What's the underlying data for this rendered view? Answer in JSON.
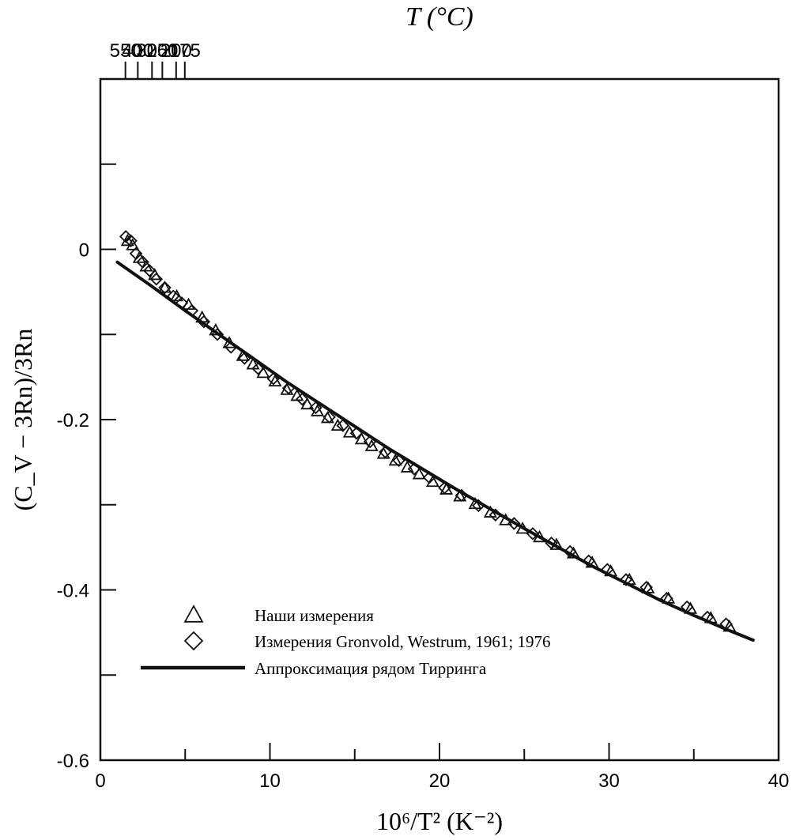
{
  "chart_data": {
    "type": "scatter",
    "xlabel": "10⁶/T² (K⁻²)",
    "ylabel": "(C_V − 3Rn)/3Rn",
    "top_axis_label": "T (°C)",
    "xlim": [
      0,
      40
    ],
    "ylim": [
      -0.6,
      0.2
    ],
    "x_tick_labels": [
      "0",
      "10",
      "20",
      "30",
      "40"
    ],
    "y_tick_labels": [
      "0",
      "-0.2",
      "-0.4",
      "-0.6"
    ],
    "top_ticks": [
      {
        "label": "550",
        "celsius": 550
      },
      {
        "label": "400",
        "celsius": 400
      },
      {
        "label": "300",
        "celsius": 300
      },
      {
        "label": "250",
        "celsius": 250
      },
      {
        "label": "200",
        "celsius": 200
      },
      {
        "label": "175",
        "celsius": 175
      }
    ],
    "grid": false,
    "legend_position": "bottom-left",
    "series": [
      {
        "name": "Наши измерения",
        "marker": "triangle",
        "x": [
          1.6,
          1.9,
          2.3,
          2.7,
          3.2,
          3.8,
          4.5,
          5.2,
          6.0,
          6.8,
          7.6,
          8.4,
          9.0,
          9.6,
          10.3,
          11.0,
          11.6,
          12.2,
          12.8,
          13.4,
          14.0,
          14.7,
          15.4,
          16.0,
          16.7,
          17.4,
          18.1,
          18.8,
          19.6,
          20.4,
          21.2,
          22.1,
          23.0,
          23.9,
          24.9,
          25.9,
          26.9,
          27.9,
          29.0,
          30.1,
          31.2,
          32.3,
          33.5,
          34.8,
          36.0,
          37.1
        ],
        "y": [
          0.01,
          0.005,
          -0.01,
          -0.02,
          -0.03,
          -0.045,
          -0.055,
          -0.065,
          -0.08,
          -0.095,
          -0.11,
          -0.125,
          -0.135,
          -0.145,
          -0.155,
          -0.165,
          -0.172,
          -0.182,
          -0.19,
          -0.198,
          -0.207,
          -0.215,
          -0.223,
          -0.231,
          -0.24,
          -0.248,
          -0.256,
          -0.264,
          -0.273,
          -0.282,
          -0.29,
          -0.299,
          -0.309,
          -0.318,
          -0.328,
          -0.338,
          -0.347,
          -0.357,
          -0.368,
          -0.378,
          -0.388,
          -0.398,
          -0.41,
          -0.422,
          -0.433,
          -0.443
        ]
      },
      {
        "name": "Измерения Gronvold, Westrum, 1961; 1976",
        "marker": "diamond",
        "x": [
          1.5,
          1.8,
          2.1,
          2.5,
          2.9,
          3.3,
          3.8,
          4.3,
          4.8,
          5.4,
          6.1,
          6.9,
          7.7,
          8.5,
          9.3,
          10.2,
          11.1,
          11.9,
          12.7,
          13.5,
          14.3,
          15.1,
          15.9,
          16.8,
          17.6,
          18.5,
          19.4,
          20.3,
          21.3,
          22.3,
          23.3,
          24.4,
          25.5,
          26.6,
          27.7,
          28.8,
          29.9,
          31.0,
          32.2,
          33.4,
          34.6,
          35.8,
          36.9
        ],
        "y": [
          0.015,
          0.01,
          -0.005,
          -0.015,
          -0.025,
          -0.035,
          -0.045,
          -0.055,
          -0.063,
          -0.072,
          -0.085,
          -0.1,
          -0.115,
          -0.128,
          -0.14,
          -0.152,
          -0.163,
          -0.176,
          -0.186,
          -0.197,
          -0.207,
          -0.216,
          -0.226,
          -0.238,
          -0.248,
          -0.258,
          -0.268,
          -0.28,
          -0.289,
          -0.301,
          -0.312,
          -0.322,
          -0.334,
          -0.345,
          -0.355,
          -0.366,
          -0.376,
          -0.388,
          -0.397,
          -0.41,
          -0.42,
          -0.432,
          -0.44
        ]
      },
      {
        "name": "Аппроксимация рядом Тирринга",
        "marker": "line",
        "x": [
          1,
          3,
          5,
          7,
          9,
          11,
          13,
          15,
          17,
          19,
          21,
          23,
          25,
          27,
          29,
          31,
          33,
          35,
          37,
          38.5
        ],
        "y": [
          -0.015,
          -0.043,
          -0.072,
          -0.1,
          -0.128,
          -0.156,
          -0.182,
          -0.208,
          -0.234,
          -0.258,
          -0.282,
          -0.305,
          -0.328,
          -0.35,
          -0.372,
          -0.392,
          -0.412,
          -0.43,
          -0.447,
          -0.459
        ]
      }
    ]
  }
}
